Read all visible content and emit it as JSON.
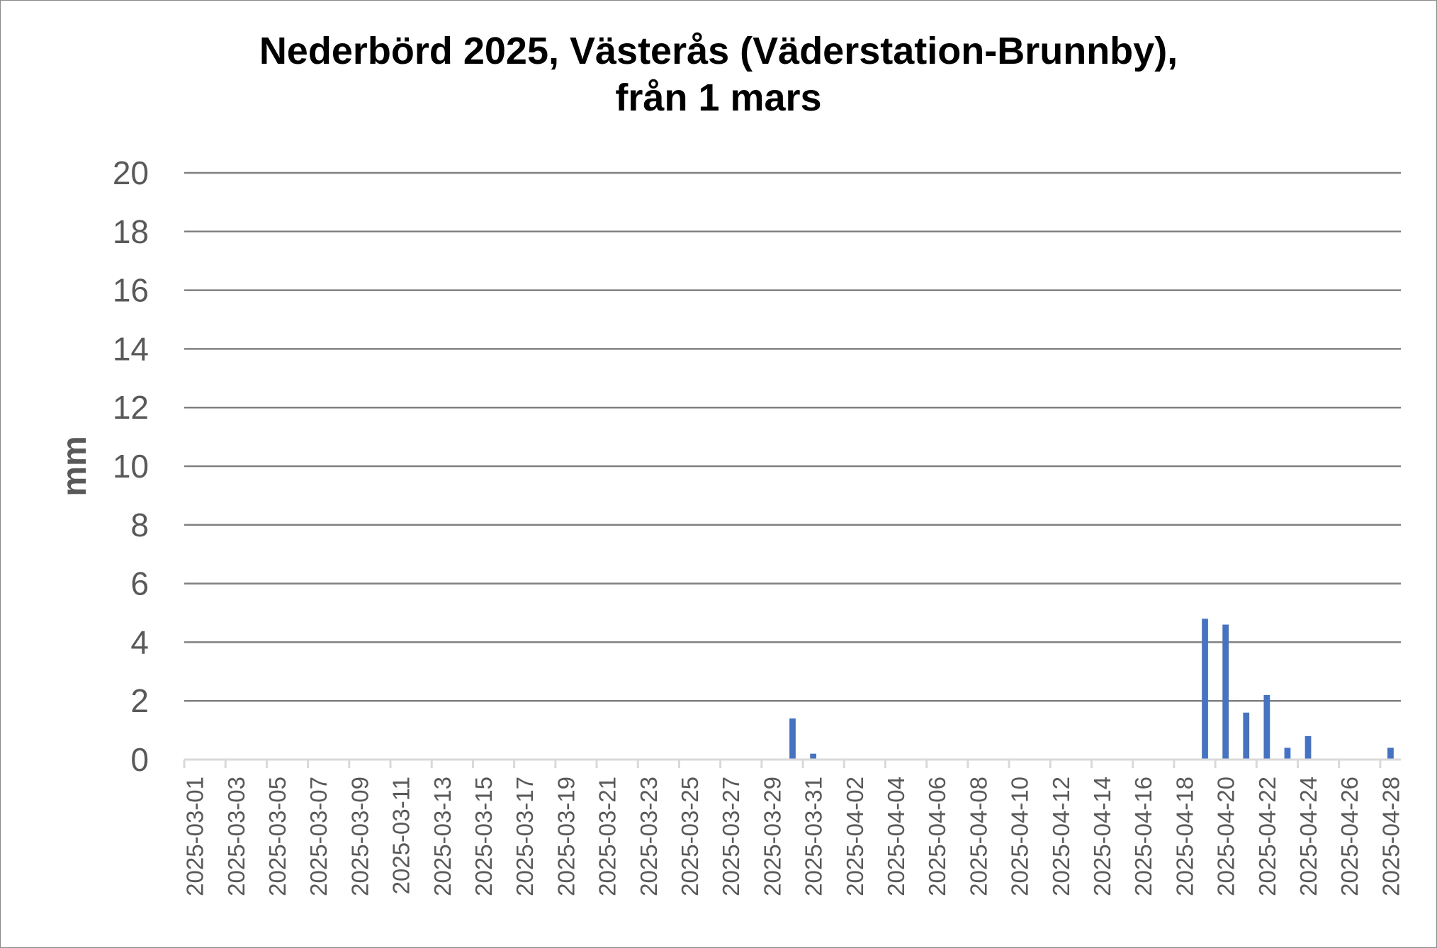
{
  "chart_data": {
    "type": "bar",
    "title": [
      "Nederbörd 2025, Västerås (Väderstation-Brunnby),",
      "från 1 mars"
    ],
    "xlabel": "",
    "ylabel": "mm",
    "ylim": [
      0,
      20
    ],
    "yticks": [
      0,
      2,
      4,
      6,
      8,
      10,
      12,
      14,
      16,
      18,
      20
    ],
    "grid": true,
    "color": "#4472C4",
    "x_start": "2025-03-01",
    "x_end": "2025-04-28",
    "x_tick_label_every": 2,
    "values": {
      "2025-03-30": 1.4,
      "2025-03-31": 0.2,
      "2025-04-19": 4.8,
      "2025-04-20": 4.6,
      "2025-04-21": 1.6,
      "2025-04-22": 2.2,
      "2025-04-23": 0.4,
      "2025-04-24": 0.8,
      "2025-04-28": 0.4
    }
  }
}
